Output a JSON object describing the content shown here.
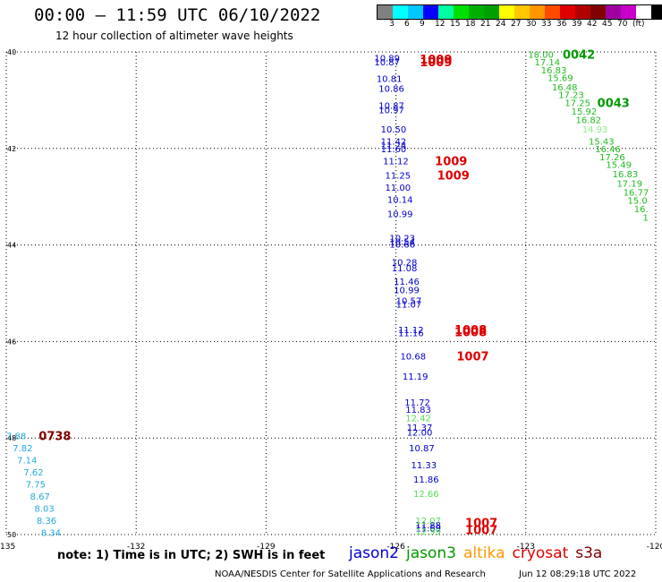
{
  "title": "00:00 – 11:59 UTC 06/10/2022",
  "subtitle": "12 hour collection of altimeter wave heights",
  "legend": {
    "colors": [
      "#808080",
      "#00ffff",
      "#00c8ff",
      "#0000ff",
      "#00ffa0",
      "#00e000",
      "#00b000",
      "#00a000",
      "#ffff00",
      "#ffc800",
      "#ff9600",
      "#ff4b00",
      "#e00000",
      "#b00000",
      "#800000",
      "#a000a0",
      "#c800c8",
      "#ffffff",
      "#000000"
    ],
    "ticks": [
      "3",
      "6",
      "9",
      "12",
      "15",
      "18",
      "21",
      "24",
      "27",
      "30",
      "33",
      "36",
      "39",
      "42",
      "45",
      "70",
      "(ft)"
    ]
  },
  "axes": {
    "lon_ticks": [
      "-135",
      "-132",
      "-129",
      "-126",
      "-123",
      "-120"
    ],
    "lat_ticks": [
      "40",
      "42",
      "44",
      "46",
      "48",
      "50"
    ]
  },
  "passes": {
    "jason2": {
      "color": "#0000cc",
      "labels": [
        {
          "id": "1009",
          "lat": 40.15,
          "lon": -125.45
        },
        {
          "id": "1009",
          "lat": 40.2,
          "lon": -125.45
        },
        {
          "id": "1009",
          "lat": 42.25,
          "lon": -125.1
        },
        {
          "id": "1009",
          "lat": 42.55,
          "lon": -125.05
        },
        {
          "id": "1008",
          "lat": 45.75,
          "lon": -124.65
        },
        {
          "id": "1008",
          "lat": 45.8,
          "lon": -124.65
        },
        {
          "id": "1007",
          "lat": 46.3,
          "lon": -124.6
        },
        {
          "id": "1007",
          "lat": 49.75,
          "lon": -124.4
        },
        {
          "id": "1007",
          "lat": 49.9,
          "lon": -124.4
        }
      ],
      "points": [
        {
          "v": "10.89",
          "lat": 40.12,
          "lon": -126.5
        },
        {
          "v": "10.87",
          "lat": 40.2,
          "lon": -126.5
        },
        {
          "v": "10.81",
          "lat": 40.55,
          "lon": -126.45
        },
        {
          "v": "10.86",
          "lat": 40.75,
          "lon": -126.4
        },
        {
          "v": "10.87",
          "lat": 41.1,
          "lon": -126.4
        },
        {
          "v": "10.97",
          "lat": 41.2,
          "lon": -126.4
        },
        {
          "v": "10.50",
          "lat": 41.6,
          "lon": -126.35
        },
        {
          "v": "11.42",
          "lat": 41.85,
          "lon": -126.35
        },
        {
          "v": "11.24",
          "lat": 41.93,
          "lon": -126.35
        },
        {
          "v": "11.60",
          "lat": 42.0,
          "lon": -126.35
        },
        {
          "v": "11.12",
          "lat": 42.25,
          "lon": -126.3
        },
        {
          "v": "11.25",
          "lat": 42.55,
          "lon": -126.25
        },
        {
          "v": "11.00",
          "lat": 42.8,
          "lon": -126.25
        },
        {
          "v": "10.14",
          "lat": 43.05,
          "lon": -126.2
        },
        {
          "v": "10.99",
          "lat": 43.35,
          "lon": -126.2
        },
        {
          "v": "10.23",
          "lat": 43.85,
          "lon": -126.15
        },
        {
          "v": "10.54",
          "lat": 43.92,
          "lon": -126.15
        },
        {
          "v": "10.66",
          "lat": 43.98,
          "lon": -126.15
        },
        {
          "v": "10.28",
          "lat": 44.35,
          "lon": -126.1
        },
        {
          "v": "11.08",
          "lat": 44.47,
          "lon": -126.1
        },
        {
          "v": "11.46",
          "lat": 44.75,
          "lon": -126.05
        },
        {
          "v": "10.99",
          "lat": 44.93,
          "lon": -126.05
        },
        {
          "v": "10.57",
          "lat": 45.15,
          "lon": -126.0
        },
        {
          "v": "11.07",
          "lat": 45.22,
          "lon": -126.0
        },
        {
          "v": "11.12",
          "lat": 45.75,
          "lon": -125.95
        },
        {
          "v": "11.16",
          "lat": 45.82,
          "lon": -125.95
        },
        {
          "v": "10.68",
          "lat": 46.3,
          "lon": -125.9
        },
        {
          "v": "11.19",
          "lat": 46.72,
          "lon": -125.85
        },
        {
          "v": "11.72",
          "lat": 47.25,
          "lon": -125.8
        },
        {
          "v": "11.83",
          "lat": 47.4,
          "lon": -125.78
        },
        {
          "v": "11.37",
          "lat": 47.77,
          "lon": -125.75
        },
        {
          "v": "12.00",
          "lat": 47.88,
          "lon": -125.75
        },
        {
          "v": "10.87",
          "lat": 48.2,
          "lon": -125.7
        },
        {
          "v": "11.33",
          "lat": 48.55,
          "lon": -125.65
        },
        {
          "v": "11.86",
          "lat": 48.85,
          "lon": -125.6
        },
        {
          "v": "11.88",
          "lat": 49.8,
          "lon": -125.55
        },
        {
          "v": "11.69",
          "lat": 49.86,
          "lon": -125.55
        }
      ]
    },
    "jason2_light": {
      "color": "#55dd55",
      "points": [
        {
          "v": "12.42",
          "lat": 47.58,
          "lon": -125.78
        },
        {
          "v": "12.66",
          "lat": 49.15,
          "lon": -125.6
        },
        {
          "v": "12.07",
          "lat": 49.7,
          "lon": -125.55
        },
        {
          "v": "12.99",
          "lat": 49.93,
          "lon": -125.55
        }
      ]
    },
    "jason3": {
      "color": "#009900",
      "labels": [
        {
          "id": "0042",
          "lat": 40.05,
          "lon": -122.15
        },
        {
          "id": "0043",
          "lat": 41.05,
          "lon": -121.35
        }
      ],
      "points": [
        {
          "v": "18.00",
          "lat": 40.05,
          "lon": -122.95
        },
        {
          "v": "17.14",
          "lat": 40.2,
          "lon": -122.8
        },
        {
          "v": "16.83",
          "lat": 40.37,
          "lon": -122.65
        },
        {
          "v": "15.69",
          "lat": 40.53,
          "lon": -122.5
        },
        {
          "v": "16.48",
          "lat": 40.72,
          "lon": -122.4
        },
        {
          "v": "17.23",
          "lat": 40.88,
          "lon": -122.25
        },
        {
          "v": "17.25",
          "lat": 41.05,
          "lon": -122.1
        },
        {
          "v": "15.92",
          "lat": 41.22,
          "lon": -121.95
        },
        {
          "v": "16.82",
          "lat": 41.4,
          "lon": -121.85
        },
        {
          "v": "15.43",
          "lat": 41.85,
          "lon": -121.55
        },
        {
          "v": "16.46",
          "lat": 42.0,
          "lon": -121.4
        },
        {
          "v": "17.26",
          "lat": 42.17,
          "lon": -121.3
        },
        {
          "v": "15.49",
          "lat": 42.33,
          "lon": -121.15
        },
        {
          "v": "16.83",
          "lat": 42.52,
          "lon": -121.0
        },
        {
          "v": "17.19",
          "lat": 42.72,
          "lon": -120.9
        },
        {
          "v": "16.77",
          "lat": 42.9,
          "lon": -120.75
        },
        {
          "v": "15.0",
          "lat": 43.07,
          "lon": -120.65
        },
        {
          "v": "16.",
          "lat": 43.25,
          "lon": -120.5
        },
        {
          "v": "1",
          "lat": 43.42,
          "lon": -120.3
        }
      ],
      "light_points": [
        {
          "v": "14.93",
          "lat": 41.6,
          "lon": -121.7
        }
      ]
    },
    "cryosat": {
      "color": "#800000",
      "labels": [
        {
          "id": "0738",
          "lat": 47.95,
          "lon": -134.25
        }
      ]
    },
    "altika": {
      "color": "#22aadd",
      "points": [
        {
          "v": "7.88",
          "lat": 47.95,
          "lon": -135.0
        },
        {
          "v": "7.82",
          "lat": 48.2,
          "lon": -134.85
        },
        {
          "v": "7.14",
          "lat": 48.45,
          "lon": -134.75
        },
        {
          "v": "7.62",
          "lat": 48.7,
          "lon": -134.6
        },
        {
          "v": "7.75",
          "lat": 48.95,
          "lon": -134.55
        },
        {
          "v": "8.67",
          "lat": 49.2,
          "lon": -134.45
        },
        {
          "v": "8.03",
          "lat": 49.45,
          "lon": -134.35
        },
        {
          "v": "8.36",
          "lat": 49.7,
          "lon": -134.3
        },
        {
          "v": "8.34",
          "lat": 49.95,
          "lon": -134.2
        }
      ]
    }
  },
  "note": "note:  1) Time is in UTC;  2) SWH is in feet",
  "satellites": [
    {
      "name": "jason2",
      "color": "#0000cc"
    },
    {
      "name": "jason3",
      "color": "#009900"
    },
    {
      "name": "altika",
      "color": "#ff9900"
    },
    {
      "name": "cryosat",
      "color": "#dd0000"
    },
    {
      "name": "s3a",
      "color": "#800000"
    }
  ],
  "credit": "NOAA/NESDIS Center for Satellite Applications and Research",
  "timestamp": "Jun 12 08:29:18 UTC 2022"
}
